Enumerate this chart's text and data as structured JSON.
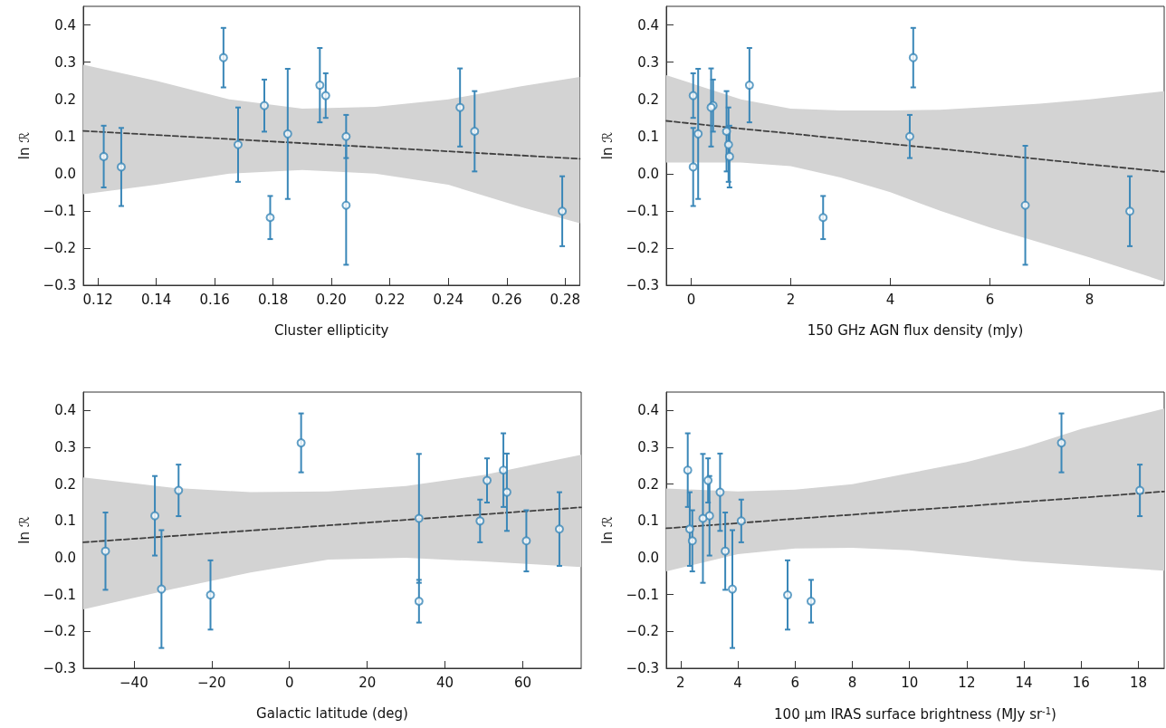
{
  "chart_data": [
    {
      "type": "scatter",
      "xlabel": "Cluster ellipticity",
      "ylabel": "ln ℛ",
      "xlim": [
        0.115,
        0.285
      ],
      "xticks": [
        0.12,
        0.14,
        0.16,
        0.18,
        {
          "value": 0.2,
          "label": "0.20"
        },
        0.22,
        0.24,
        0.26,
        0.28
      ],
      "ylim": [
        -0.3,
        0.45
      ],
      "yticks": [
        {
          "value": -0.3,
          "label": "−0.3"
        },
        {
          "value": -0.2,
          "label": "−0.2"
        },
        {
          "value": -0.1,
          "label": "−0.1"
        },
        {
          "value": 0,
          "label": "0.0"
        },
        0.1,
        0.2,
        0.3,
        0.4
      ],
      "grid": false,
      "series": [
        {
          "color": "#3a87b8",
          "marker": "circle",
          "x": [
            0.163,
            0.196,
            0.198,
            0.177,
            0.244,
            0.249,
            0.185,
            0.205,
            0.168,
            0.122,
            0.128,
            0.205,
            0.279,
            0.179
          ],
          "values": [
            0.312,
            0.238,
            0.21,
            0.183,
            0.178,
            0.114,
            0.107,
            0.1,
            0.078,
            0.046,
            0.018,
            -0.085,
            -0.101,
            -0.118
          ],
          "errors": [
            0.08,
            0.1,
            0.06,
            0.07,
            0.105,
            0.108,
            0.175,
            0.058,
            0.1,
            0.083,
            0.105,
            0.16,
            0.094,
            0.058
          ]
        },
        {
          "type": "line",
          "color": "#404040",
          "line_style": "dashed",
          "marker": "none",
          "x": [
            0.115,
            0.14,
            0.165,
            0.19,
            0.215,
            0.24,
            0.265,
            0.285
          ],
          "values": [
            0.115,
            0.104,
            0.093,
            0.082,
            0.071,
            0.06,
            0.049,
            0.04
          ],
          "lower": [
            -0.055,
            -0.03,
            0.0,
            0.01,
            0.0,
            -0.03,
            -0.09,
            -0.133
          ],
          "upper": [
            0.293,
            0.25,
            0.2,
            0.175,
            0.18,
            0.2,
            0.235,
            0.26
          ]
        }
      ]
    },
    {
      "type": "scatter",
      "xlabel": "150 GHz AGN flux density (mJy)",
      "ylabel": "ln ℛ",
      "xlim": [
        -0.5,
        9.5
      ],
      "xticks": [
        0,
        2,
        4,
        6,
        8
      ],
      "ylim": [
        -0.3,
        0.45
      ],
      "yticks": [
        {
          "value": -0.3,
          "label": "−0.3"
        },
        {
          "value": -0.2,
          "label": "−0.2"
        },
        {
          "value": -0.1,
          "label": "−0.1"
        },
        {
          "value": 0,
          "label": "0.0"
        },
        0.1,
        0.2,
        0.3,
        0.4
      ],
      "grid": false,
      "series": [
        {
          "color": "#3a87b8",
          "marker": "circle",
          "x": [
            4.46,
            1.17,
            0.04,
            0.44,
            0.4,
            0.71,
            0.14,
            4.39,
            0.75,
            0.77,
            0.04,
            6.71,
            8.81,
            2.65
          ],
          "values": [
            0.312,
            0.238,
            0.21,
            0.183,
            0.178,
            0.114,
            0.107,
            0.1,
            0.078,
            0.046,
            0.018,
            -0.085,
            -0.101,
            -0.118
          ],
          "errors": [
            0.08,
            0.1,
            0.06,
            0.07,
            0.105,
            0.108,
            0.175,
            0.058,
            0.1,
            0.083,
            0.105,
            0.16,
            0.094,
            0.058
          ]
        },
        {
          "type": "line",
          "color": "#404040",
          "line_style": "dashed",
          "marker": "none",
          "x": [
            -0.5,
            1,
            2,
            3,
            4,
            5,
            6,
            7,
            8,
            9.5
          ],
          "values": [
            0.142,
            0.121,
            0.108,
            0.094,
            0.08,
            0.067,
            0.053,
            0.039,
            0.025,
            0.005
          ],
          "lower": [
            0.03,
            0.03,
            0.02,
            -0.01,
            -0.05,
            -0.1,
            -0.145,
            -0.185,
            -0.225,
            -0.29
          ],
          "upper": [
            0.265,
            0.2,
            0.175,
            0.17,
            0.17,
            0.172,
            0.18,
            0.188,
            0.2,
            0.222
          ]
        }
      ]
    },
    {
      "type": "scatter",
      "xlabel": "Galactic latitude (deg)",
      "ylabel": "ln ℛ",
      "xlim": [
        -53,
        75
      ],
      "xticks": [
        {
          "value": -40,
          "label": "−40"
        },
        {
          "value": -20,
          "label": "−20"
        },
        0,
        20,
        40,
        60
      ],
      "ylim": [
        -0.3,
        0.45
      ],
      "yticks": [
        {
          "value": -0.3,
          "label": "−0.3"
        },
        {
          "value": -0.2,
          "label": "−0.2"
        },
        {
          "value": -0.1,
          "label": "−0.1"
        },
        {
          "value": 0,
          "label": "0.0"
        },
        0.1,
        0.2,
        0.3,
        0.4
      ],
      "grid": false,
      "series": [
        {
          "color": "#3a87b8",
          "marker": "circle",
          "x": [
            3.0,
            55.0,
            50.8,
            -28.5,
            55.9,
            -34.6,
            33.3,
            49.0,
            69.4,
            60.9,
            -47.3,
            -32.9,
            -20.3,
            33.3
          ],
          "values": [
            0.312,
            0.238,
            0.21,
            0.183,
            0.178,
            0.114,
            0.107,
            0.1,
            0.078,
            0.046,
            0.018,
            -0.085,
            -0.101,
            -0.118
          ],
          "errors": [
            0.08,
            0.1,
            0.06,
            0.07,
            0.105,
            0.108,
            0.175,
            0.058,
            0.1,
            0.083,
            0.105,
            0.16,
            0.094,
            0.058
          ]
        },
        {
          "type": "line",
          "color": "#404040",
          "line_style": "dashed",
          "marker": "none",
          "x": [
            -53,
            -30,
            -10,
            10,
            30,
            50,
            75
          ],
          "values": [
            0.042,
            0.059,
            0.074,
            0.088,
            0.103,
            0.118,
            0.137
          ],
          "lower": [
            -0.14,
            -0.085,
            -0.04,
            -0.005,
            0.0,
            -0.01,
            -0.025
          ],
          "upper": [
            0.218,
            0.19,
            0.178,
            0.18,
            0.195,
            0.225,
            0.28
          ]
        }
      ]
    },
    {
      "type": "scatter",
      "xlabel": "100 µm IRAS surface brightness (MJy sr$^{-1}$)",
      "ylabel": "ln ℛ",
      "xlim": [
        1.5,
        18.9
      ],
      "xticks": [
        2,
        4,
        6,
        8,
        10,
        12,
        14,
        16,
        18
      ],
      "ylim": [
        -0.3,
        0.45
      ],
      "yticks": [
        {
          "value": -0.3,
          "label": "−0.3"
        },
        {
          "value": -0.2,
          "label": "−0.2"
        },
        {
          "value": -0.1,
          "label": "−0.1"
        },
        {
          "value": 0,
          "label": "0.0"
        },
        0.1,
        0.2,
        0.3,
        0.4
      ],
      "grid": false,
      "series": [
        {
          "color": "#3a87b8",
          "marker": "circle",
          "x": [
            15.31,
            2.25,
            2.96,
            18.05,
            3.38,
            3.01,
            2.78,
            4.12,
            2.32,
            2.41,
            3.56,
            3.81,
            5.74,
            6.56
          ],
          "values": [
            0.312,
            0.238,
            0.21,
            0.183,
            0.178,
            0.114,
            0.107,
            0.1,
            0.078,
            0.046,
            0.018,
            -0.085,
            -0.101,
            -0.118
          ],
          "errors": [
            0.08,
            0.1,
            0.06,
            0.07,
            0.105,
            0.108,
            0.175,
            0.058,
            0.1,
            0.083,
            0.105,
            0.16,
            0.094,
            0.058
          ]
        },
        {
          "type": "line",
          "color": "#404040",
          "line_style": "dashed",
          "marker": "none",
          "x": [
            1.5,
            4,
            6,
            8,
            10,
            12,
            14,
            16,
            18.9
          ],
          "values": [
            0.08,
            0.094,
            0.106,
            0.117,
            0.129,
            0.14,
            0.152,
            0.163,
            0.18
          ],
          "lower": [
            -0.037,
            0.01,
            0.025,
            0.027,
            0.02,
            0.005,
            -0.01,
            -0.02,
            -0.035
          ],
          "upper": [
            0.188,
            0.18,
            0.185,
            0.2,
            0.23,
            0.26,
            0.3,
            0.35,
            0.405
          ]
        }
      ]
    }
  ]
}
